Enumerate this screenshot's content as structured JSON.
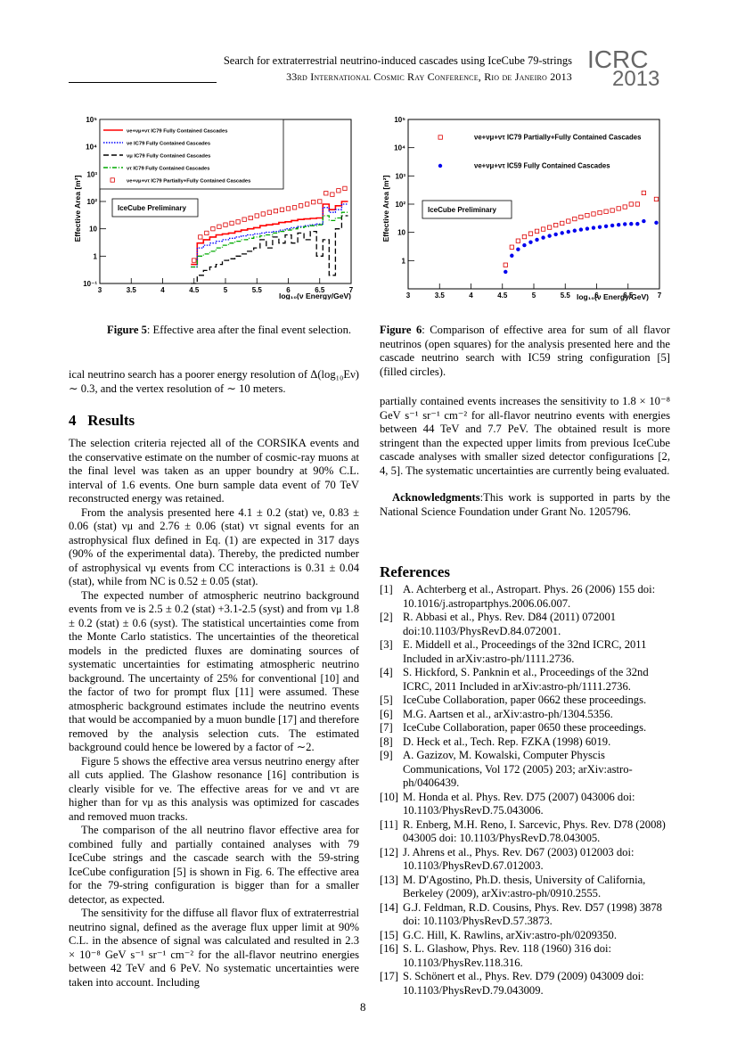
{
  "header": {
    "title": "Search for extraterrestrial neutrino-induced cascades using IceCube 79-strings",
    "conference": "33rd International Cosmic Ray Conference, Rio de Janeiro 2013",
    "logo_text_top": "ICRC",
    "logo_text_bottom": "2013"
  },
  "figures": {
    "fig5": {
      "caption_label": "Figure 5",
      "caption_text": ": Effective area after the final event selection.",
      "ylabel": "Effective Area [m²]",
      "xlabel": "log₁₀(ν Energy/GeV)",
      "preliminary": "IceCube Preliminary",
      "y_ticks": [
        "10⁵",
        "10⁴",
        "10³",
        "10²",
        "10",
        "1",
        "10⁻¹"
      ],
      "x_ticks": [
        "3",
        "3.5",
        "4",
        "4.5",
        "5",
        "5.5",
        "6",
        "6.5",
        "7"
      ],
      "legend": [
        "νe+νμ+ντ IC79 Fully Contained Cascades",
        "νe IC79 Fully Contained Cascades",
        "νμ IC79 Fully Contained Cascades",
        "ντ IC79 Fully Contained Cascades",
        "νe+νμ+ντ IC79  Partially+Fully Contained Cascades"
      ]
    },
    "fig6": {
      "caption_label": "Figure 6",
      "caption_text": ": Comparison of effective area for sum of all flavor neutrinos (open squares) for the analysis presented here and the cascade neutrino search with IC59 string configuration [5] (filled circles).",
      "ylabel": "Effective Area [m²]",
      "xlabel": "log₁₀(ν Energy/GeV)",
      "preliminary": "IceCube Preliminary",
      "y_ticks": [
        "10⁵",
        "10⁴",
        "10³",
        "10²",
        "10",
        "1"
      ],
      "x_ticks": [
        "3",
        "3.5",
        "4",
        "4.5",
        "5",
        "5.5",
        "6",
        "6.5",
        "7"
      ],
      "legend": [
        "νe+νμ+ντ IC79 Partially+Fully Contained Cascades",
        "νe+νμ+ντ IC59 Fully Contained Cascades"
      ]
    }
  },
  "chart_data": [
    {
      "type": "line",
      "xlabel": "log₁₀(ν Energy/GeV)",
      "ylabel": "Effective Area [m²]",
      "xlim": [
        3,
        7
      ],
      "ylim": [
        0.1,
        100000
      ],
      "log_y": true,
      "legend_placement": "top",
      "x": [
        4.5,
        4.6,
        4.7,
        4.8,
        4.9,
        5.0,
        5.1,
        5.2,
        5.3,
        5.4,
        5.5,
        5.6,
        5.7,
        5.8,
        5.9,
        6.0,
        6.1,
        6.2,
        6.3,
        6.4,
        6.5,
        6.6,
        6.7,
        6.8,
        6.9
      ],
      "series": [
        {
          "name": "νe+νμ+ντ IC79 Fully Contained Cascades",
          "color": "#ff0000",
          "style": "solid-step",
          "values": [
            0.5,
            3,
            4,
            5,
            6,
            6.5,
            7,
            8,
            9,
            10,
            11,
            13,
            14,
            15,
            17,
            18,
            20,
            22,
            23,
            24,
            25,
            80,
            50,
            70,
            100
          ]
        },
        {
          "name": "νe IC79 Fully Contained Cascades",
          "color": "#0000ff",
          "style": "dotted-step",
          "values": [
            0.4,
            2,
            2.5,
            3,
            3.5,
            4,
            4.5,
            5,
            5.5,
            6,
            6.5,
            7,
            7.5,
            8,
            9,
            10,
            11,
            12,
            13,
            14,
            15,
            60,
            40,
            50,
            80
          ]
        },
        {
          "name": "νμ IC79 Fully Contained Cascades",
          "color": "#000000",
          "style": "dashed-step",
          "values": [
            0.1,
            0.2,
            0.3,
            0.4,
            0.5,
            0.7,
            0.8,
            1,
            1.2,
            1.5,
            2,
            4,
            2,
            5,
            3,
            6,
            3,
            7,
            4,
            8,
            1,
            4,
            0.2,
            10,
            30
          ]
        },
        {
          "name": "ντ IC79 Fully Contained Cascades",
          "color": "#00aa00",
          "style": "dashdot-step",
          "values": [
            0.4,
            1,
            1.2,
            1.5,
            2,
            2.5,
            3,
            3.5,
            4,
            4.5,
            5,
            5.5,
            6,
            7,
            8,
            9,
            10,
            11,
            12,
            13,
            14,
            30,
            20,
            25,
            40
          ]
        },
        {
          "name": "νe+νμ+ντ IC79  Partially+Fully Contained Cascades",
          "color": "#dd0000",
          "style": "open-square",
          "values": [
            0.7,
            5,
            7,
            10,
            12,
            14,
            16,
            18,
            22,
            25,
            30,
            35,
            40,
            45,
            50,
            55,
            60,
            70,
            80,
            95,
            100,
            200,
            180,
            250,
            300
          ]
        }
      ]
    },
    {
      "type": "scatter",
      "xlabel": "log₁₀(ν Energy/GeV)",
      "ylabel": "Effective Area [m²]",
      "xlim": [
        3,
        7
      ],
      "ylim": [
        0.1,
        100000
      ],
      "log_y": true,
      "legend_placement": "top",
      "series": [
        {
          "name": "νe+νμ+ντ IC79 Partially+Fully Contained Cascades",
          "color": "#dd0000",
          "marker": "open-square",
          "x": [
            4.55,
            4.65,
            4.75,
            4.85,
            4.95,
            5.05,
            5.15,
            5.25,
            5.35,
            5.45,
            5.55,
            5.65,
            5.75,
            5.85,
            5.95,
            6.05,
            6.15,
            6.25,
            6.35,
            6.45,
            6.55,
            6.65,
            6.75,
            6.95
          ],
          "y": [
            0.7,
            3,
            5,
            7,
            9,
            11,
            13,
            15,
            18,
            21,
            25,
            30,
            35,
            40,
            45,
            50,
            55,
            60,
            70,
            80,
            100,
            100,
            250,
            150
          ]
        },
        {
          "name": "νe+νμ+ντ IC59 Fully Contained Cascades",
          "color": "#0000ee",
          "marker": "filled-circle",
          "x": [
            4.55,
            4.65,
            4.75,
            4.85,
            4.95,
            5.05,
            5.15,
            5.25,
            5.35,
            5.45,
            5.55,
            5.65,
            5.75,
            5.85,
            5.95,
            6.05,
            6.15,
            6.25,
            6.35,
            6.45,
            6.55,
            6.65,
            6.75,
            6.95
          ],
          "y": [
            0.4,
            1.5,
            2.5,
            3.5,
            4.5,
            5.5,
            6.5,
            7.5,
            8.5,
            9.5,
            10.5,
            11.5,
            12.5,
            13.5,
            14.5,
            15.5,
            16.5,
            17.5,
            18.5,
            19.5,
            20,
            20,
            25,
            22
          ]
        }
      ]
    }
  ],
  "left_column": {
    "intro_paragraph": "ical neutrino search has a poorer energy resolution of Δ(log₁₀Eν) ∼ 0.3, and the vertex resolution of ∼ 10 meters.",
    "section_number": "4",
    "section_title": "Results",
    "paragraphs": [
      "The selection criteria rejected all of the CORSIKA events and the conservative estimate on the number of cosmic-ray muons at the final level was taken as an upper boundry at 90% C.L. interval of 1.6 events. One burn sample data event of 70 TeV reconstructed energy was retained.",
      "From the analysis presented here 4.1 ± 0.2 (stat) νe, 0.83 ± 0.06 (stat) νμ and 2.76 ± 0.06 (stat) ντ signal events for an astrophysical flux defined in Eq. (1) are expected in 317 days (90% of the experimental data). Thereby, the predicted number of astrophysical νμ events from CC interactions is 0.31 ± 0.04 (stat), while from NC is 0.52 ± 0.05 (stat).",
      "The expected number of atmospheric neutrino background events from νe is 2.5 ± 0.2 (stat) +3.1-2.5 (syst) and from νμ 1.8 ± 0.2 (stat) ± 0.6 (syst). The statistical uncertainties come from the Monte Carlo statistics. The uncertainties of the theoretical models in the predicted fluxes are dominating sources of systematic uncertainties for estimating atmospheric neutrino background. The uncertainty of 25% for conventional [10] and the factor of two for prompt flux [11] were assumed. These atmospheric background estimates include the neutrino events that would be accompanied by a muon bundle [17] and therefore removed by the analysis selection cuts. The estimated background could hence be lowered by a factor of ∼2.",
      "Figure 5 shows the effective area versus neutrino energy after all cuts applied. The Glashow resonance [16] contribution is clearly visible for νe. The effective areas for νe and ντ are higher than for νμ as this analysis was optimized for cascades and removed muon tracks.",
      "The comparison of the all neutrino flavor effective area for combined fully and partially contained analyses with 79 IceCube strings and the cascade search with the 59-string IceCube configuration [5] is shown in Fig. 6. The effective area for the 79-string configuration is bigger than for a smaller detector, as expected.",
      "The sensitivity for the diffuse all flavor flux of extraterrestrial neutrino signal, defined as the average flux upper limit at 90% C.L. in the absence of signal was calculated and resulted in 2.3 × 10⁻⁸ GeV s⁻¹ sr⁻¹ cm⁻² for the all-flavor neutrino energies between 42 TeV and 6 PeV. No systematic uncertainties were taken into account. Including"
    ]
  },
  "right_column": {
    "paragraph": "partially contained events increases the sensitivity to 1.8 × 10⁻⁸ GeV s⁻¹ sr⁻¹ cm⁻² for all-flavor neutrino events with energies between 44 TeV and 7.7 PeV. The obtained result is more stringent than the expected upper limits from previous IceCube cascade analyses with smaller sized detector configurations [2, 4, 5]. The systematic uncertainties are currently being evaluated.",
    "ack_label": "Acknowledgments",
    "ack_text": ":This work is supported in parts by the National Science Foundation under Grant No. 1205796.",
    "references_title": "References",
    "references": [
      {
        "num": "[1]",
        "text": "A. Achterberg et al., Astropart. Phys. 26 (2006) 155 doi: 10.1016/j.astropartphys.2006.06.007."
      },
      {
        "num": "[2]",
        "text": "R. Abbasi et al., Phys. Rev. D84 (2011) 072001 doi:10.1103/PhysRevD.84.072001."
      },
      {
        "num": "[3]",
        "text": "E. Middell et al., Proceedings of the 32nd ICRC, 2011 Included in arXiv:astro-ph/1111.2736."
      },
      {
        "num": "[4]",
        "text": "S. Hickford, S. Panknin et al., Proceedings of the 32nd ICRC, 2011 Included in arXiv:astro-ph/1111.2736."
      },
      {
        "num": "[5]",
        "text": "IceCube Collaboration, paper 0662 these proceedings."
      },
      {
        "num": "[6]",
        "text": "M.G. Aartsen et al., arXiv:astro-ph/1304.5356."
      },
      {
        "num": "[7]",
        "text": "IceCube Collaboration, paper 0650 these proceedings."
      },
      {
        "num": "[8]",
        "text": "D. Heck et al., Tech. Rep. FZKA (1998) 6019."
      },
      {
        "num": "[9]",
        "text": "A. Gazizov, M. Kowalski, Computer Physcis Communications, Vol 172 (2005) 203; arXiv:astro-ph/0406439."
      },
      {
        "num": "[10]",
        "text": "M. Honda et al. Phys. Rev. D75 (2007) 043006 doi: 10.1103/PhysRevD.75.043006."
      },
      {
        "num": "[11]",
        "text": "R. Enberg, M.H. Reno, I. Sarcevic, Phys. Rev. D78 (2008) 043005 doi: 10.1103/PhysRevD.78.043005."
      },
      {
        "num": "[12]",
        "text": "J. Ahrens et al., Phys. Rev. D67 (2003) 012003 doi: 10.1103/PhysRevD.67.012003."
      },
      {
        "num": "[13]",
        "text": "M. D'Agostino, Ph.D. thesis, University of California, Berkeley (2009), arXiv:astro-ph/0910.2555."
      },
      {
        "num": "[14]",
        "text": "G.J. Feldman, R.D. Cousins, Phys. Rev. D57 (1998) 3878 doi: 10.1103/PhysRevD.57.3873."
      },
      {
        "num": "[15]",
        "text": "G.C. Hill, K. Rawlins, arXiv:astro-ph/0209350."
      },
      {
        "num": "[16]",
        "text": "S. L. Glashow, Phys. Rev. 118 (1960) 316 doi: 10.1103/PhysRev.118.316."
      },
      {
        "num": "[17]",
        "text": "S. Schönert et al., Phys. Rev. D79 (2009) 043009 doi: 10.1103/PhysRevD.79.043009."
      }
    ]
  },
  "page_number": "8"
}
